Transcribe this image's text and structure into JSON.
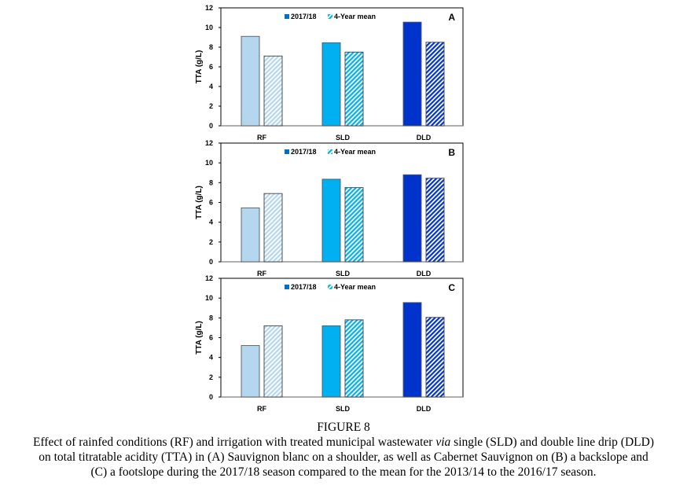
{
  "figure_label": "FIGURE 8",
  "caption": {
    "line1_before": "Effect of rainfed conditions (RF) and irrigation with treated municipal wastewater ",
    "line1_italic": "via",
    "line1_after": " single (SLD) and double line drip (DLD)",
    "line2": "on total titratable acidity (TTA) in (A) Sauvignon blanc on a shoulder, as well as Cabernet Sauvignon on (B) a backslope and",
    "line3": "(C) a footslope during the 2017/18 season compared to the mean for the 2013/14 to the 2016/17 season."
  },
  "colors": {
    "RF": "#b4d6ee",
    "SLD": "#00b0f0",
    "DLD": "#0033cc",
    "legend_marker": "#0070c0",
    "hatch_light": "#ffffff"
  },
  "chart_data": [
    {
      "type": "bar",
      "panel": "A",
      "title": "",
      "xlabel": "",
      "ylabel": "TTA (g/L)",
      "ylim": [
        0,
        12
      ],
      "yticks": [
        0,
        2,
        4,
        6,
        8,
        10,
        12
      ],
      "categories": [
        "RF",
        "SLD",
        "DLD"
      ],
      "legend": {
        "placement": "top-center",
        "entries": [
          "2017/18",
          "4-Year mean"
        ]
      },
      "series": [
        {
          "name": "2017/18",
          "style": "solid",
          "values": [
            9.1,
            8.45,
            10.55
          ]
        },
        {
          "name": "4-Year mean",
          "style": "hatched",
          "values": [
            7.1,
            7.5,
            8.5
          ]
        }
      ]
    },
    {
      "type": "bar",
      "panel": "B",
      "title": "",
      "xlabel": "",
      "ylabel": "TTA (g/L)",
      "ylim": [
        0,
        12
      ],
      "yticks": [
        0,
        2,
        4,
        6,
        8,
        10,
        12
      ],
      "categories": [
        "RF",
        "SLD",
        "DLD"
      ],
      "legend": {
        "placement": "top-center",
        "entries": [
          "2017/18",
          "4-Year mean"
        ]
      },
      "series": [
        {
          "name": "2017/18",
          "style": "solid",
          "values": [
            5.45,
            8.35,
            8.8
          ]
        },
        {
          "name": "4-Year mean",
          "style": "hatched",
          "values": [
            6.9,
            7.5,
            8.45
          ]
        }
      ]
    },
    {
      "type": "bar",
      "panel": "C",
      "title": "",
      "xlabel": "",
      "ylabel": "TTA (g/L)",
      "ylim": [
        0,
        12
      ],
      "yticks": [
        0,
        2,
        4,
        6,
        8,
        10,
        12
      ],
      "categories": [
        "RF",
        "SLD",
        "DLD"
      ],
      "legend": {
        "placement": "top-center",
        "entries": [
          "2017/18",
          "4-Year mean"
        ]
      },
      "series": [
        {
          "name": "2017/18",
          "style": "solid",
          "values": [
            5.2,
            7.2,
            9.55
          ]
        },
        {
          "name": "4-Year mean",
          "style": "hatched",
          "values": [
            7.2,
            7.8,
            8.05
          ]
        }
      ]
    }
  ]
}
